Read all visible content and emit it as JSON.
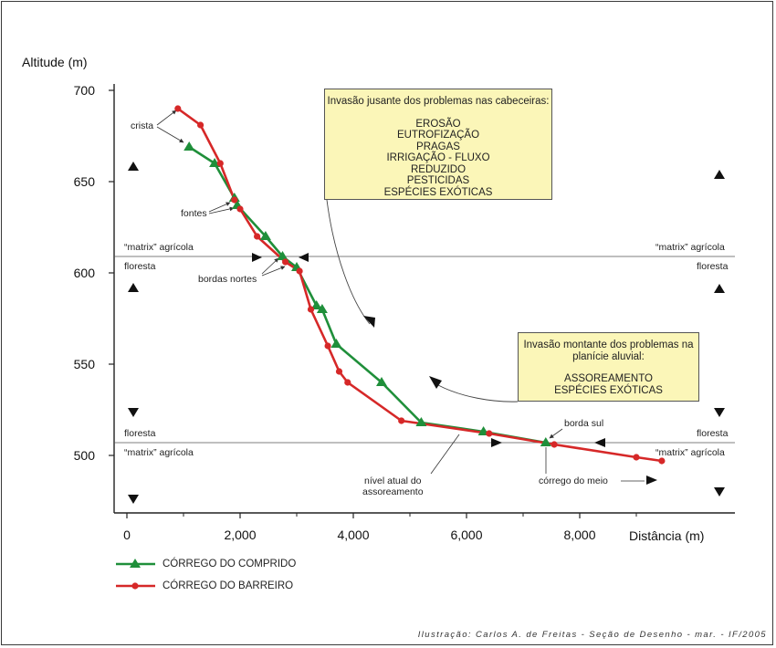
{
  "chart_data": {
    "type": "line",
    "xlabel": "Distância (m)",
    "ylabel": "Altitude (m)",
    "xlim": [
      0,
      10500
    ],
    "ylim": [
      460,
      700
    ],
    "x_ticks": [
      "0",
      "2,000",
      "4,000",
      "6,000",
      "8,000"
    ],
    "y_ticks": [
      "700",
      "650",
      "600",
      "550",
      "500"
    ],
    "series": [
      {
        "name": "CÓRREGO DO COMPRIDO",
        "color": "#1f8f3a",
        "marker": "triangle",
        "points": [
          [
            1100,
            669
          ],
          [
            1550,
            660
          ],
          [
            1900,
            641
          ],
          [
            1950,
            637
          ],
          [
            2450,
            620
          ],
          [
            2750,
            609
          ],
          [
            3000,
            603
          ],
          [
            3350,
            582
          ],
          [
            3450,
            580
          ],
          [
            3700,
            561
          ],
          [
            4500,
            540
          ],
          [
            5200,
            518
          ],
          [
            6300,
            513
          ],
          [
            7400,
            507
          ]
        ]
      },
      {
        "name": "CÓRREGO DO BARREIRO",
        "color": "#d62828",
        "marker": "circle",
        "points": [
          [
            900,
            690
          ],
          [
            1300,
            681
          ],
          [
            1650,
            660
          ],
          [
            1900,
            640
          ],
          [
            2000,
            635
          ],
          [
            2300,
            620
          ],
          [
            2800,
            606
          ],
          [
            3050,
            601
          ],
          [
            3250,
            580
          ],
          [
            3550,
            560
          ],
          [
            3750,
            546
          ],
          [
            3900,
            540
          ],
          [
            4850,
            519
          ],
          [
            6400,
            512
          ],
          [
            7550,
            506
          ],
          [
            9000,
            499
          ],
          [
            9450,
            497
          ]
        ]
      }
    ]
  },
  "annotations": {
    "box_top": {
      "heading": "Invasão jusante dos problemas nas cabeceiras:",
      "items": [
        "EROSÃO",
        "EUTROFIZAÇÃO",
        "PRAGAS",
        "IRRIGAÇÃO - FLUXO",
        "REDUZIDO",
        "PESTICIDAS",
        "ESPÉCIES EXÓTICAS"
      ]
    },
    "box_bottom": {
      "heading_line1": "Invasão montante dos problemas na",
      "heading_line2": "planície aluvial:",
      "items": [
        "ASSOREAMENTO",
        "ESPÉCIES EXÓTICAS"
      ]
    },
    "crista": "crista",
    "fontes": "fontes",
    "bordas_nortes": "bordas nortes",
    "borda_sul": "borda sul",
    "corrego_do_meio": "córrego do meio",
    "nivel_line1": "nível atual do",
    "nivel_line2": "assoreamento",
    "matrix_agricola": "“matrix” agrícola",
    "floresta": "floresta"
  },
  "credit": "Ilustração: Carlos A. de Freitas - Seção de Desenho - mar. - IF/2005",
  "colors": {
    "green": "#1f8f3a",
    "red": "#d62828",
    "box_fill": "#fbf6b8"
  }
}
